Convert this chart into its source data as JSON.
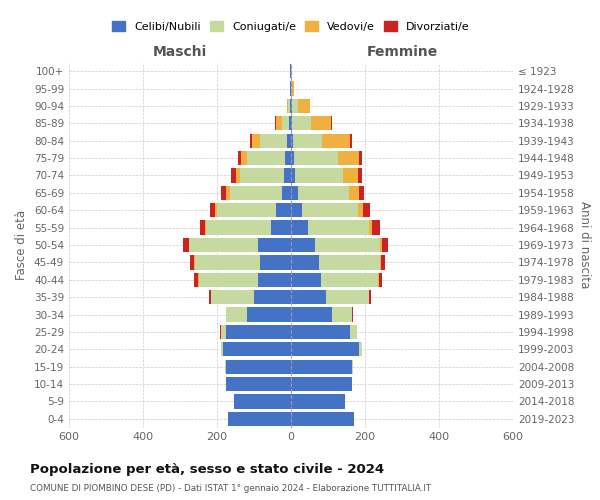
{
  "age_groups": [
    "100+",
    "95-99",
    "90-94",
    "85-89",
    "80-84",
    "75-79",
    "70-74",
    "65-69",
    "60-64",
    "55-59",
    "50-54",
    "45-49",
    "40-44",
    "35-39",
    "30-34",
    "25-29",
    "20-24",
    "15-19",
    "10-14",
    "5-9",
    "0-4"
  ],
  "birth_years": [
    "≤ 1923",
    "1924-1928",
    "1929-1933",
    "1934-1938",
    "1939-1943",
    "1944-1948",
    "1949-1953",
    "1954-1958",
    "1959-1963",
    "1964-1968",
    "1969-1973",
    "1974-1978",
    "1979-1983",
    "1984-1988",
    "1989-1993",
    "1994-1998",
    "1999-2003",
    "2004-2008",
    "2009-2013",
    "2014-2018",
    "2019-2023"
  ],
  "male_celibi": [
    2,
    2,
    2,
    5,
    10,
    15,
    18,
    25,
    40,
    55,
    90,
    85,
    90,
    100,
    120,
    175,
    185,
    175,
    175,
    155,
    170
  ],
  "male_coniugati": [
    1,
    2,
    5,
    20,
    75,
    105,
    120,
    140,
    160,
    175,
    185,
    175,
    160,
    115,
    55,
    15,
    5,
    3,
    0,
    0,
    0
  ],
  "male_vedovi": [
    0,
    0,
    5,
    15,
    20,
    15,
    12,
    10,
    5,
    2,
    2,
    1,
    1,
    1,
    0,
    0,
    0,
    0,
    0,
    0,
    0
  ],
  "male_divorziati": [
    0,
    0,
    0,
    2,
    5,
    8,
    12,
    15,
    15,
    15,
    15,
    12,
    10,
    5,
    2,
    1,
    0,
    0,
    0,
    0,
    0
  ],
  "female_celibi": [
    1,
    1,
    2,
    3,
    5,
    8,
    10,
    18,
    30,
    45,
    65,
    75,
    80,
    95,
    110,
    160,
    185,
    165,
    165,
    145,
    170
  ],
  "female_coniugati": [
    1,
    3,
    18,
    50,
    80,
    120,
    130,
    140,
    150,
    165,
    175,
    165,
    155,
    115,
    55,
    18,
    8,
    3,
    0,
    0,
    0
  ],
  "female_vedovi": [
    2,
    5,
    30,
    55,
    75,
    55,
    40,
    25,
    15,
    8,
    5,
    3,
    2,
    1,
    0,
    0,
    0,
    0,
    0,
    0,
    0
  ],
  "female_divorziati": [
    0,
    0,
    2,
    3,
    5,
    8,
    12,
    15,
    18,
    22,
    18,
    12,
    8,
    5,
    3,
    1,
    0,
    0,
    0,
    0,
    0
  ],
  "color_celibi": "#4472c4",
  "color_coniugati": "#c5d9a0",
  "color_vedovi": "#f0b040",
  "color_divorziati": "#cc2222",
  "title": "Popolazione per età, sesso e stato civile - 2024",
  "subtitle": "COMUNE DI PIOMBINO DESE (PD) - Dati ISTAT 1° gennaio 2024 - Elaborazione TUTTITALIA.IT",
  "ylabel_left": "Fasce di età",
  "ylabel_right": "Anni di nascita",
  "xlabel_left": "Maschi",
  "xlabel_right": "Femmine",
  "xlim": 600,
  "background_color": "#ffffff",
  "grid_color": "#cccccc"
}
